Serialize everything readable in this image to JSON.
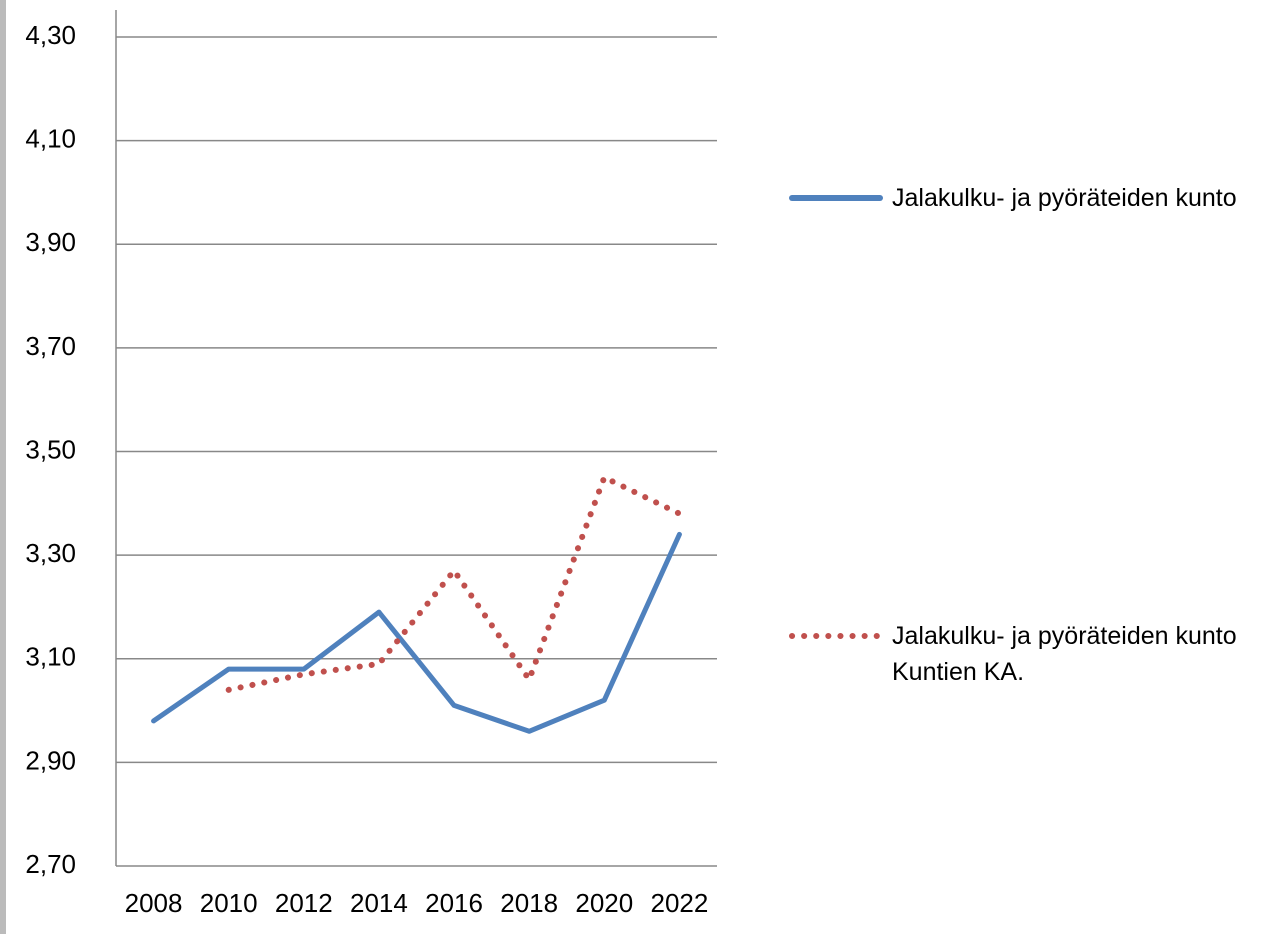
{
  "chart_data": {
    "type": "line",
    "categories": [
      "2008",
      "2010",
      "2012",
      "2014",
      "2016",
      "2018",
      "2020",
      "2022"
    ],
    "series": [
      {
        "name": "Jalakulku- ja pyöräteiden kunto",
        "color": "#4f81bd",
        "style": "solid",
        "values": [
          2.98,
          3.08,
          3.08,
          3.19,
          3.01,
          2.96,
          3.02,
          3.34
        ]
      },
      {
        "name": "Jalakulku- ja pyöräteiden kunto Kuntien KA.",
        "color": "#c0504d",
        "style": "dotted",
        "values": [
          null,
          3.04,
          3.07,
          3.09,
          3.27,
          3.06,
          3.45,
          3.38
        ]
      }
    ],
    "ylim": [
      2.7,
      4.3
    ],
    "yticks": [
      {
        "value": 2.7,
        "label": "2,70"
      },
      {
        "value": 2.9,
        "label": "2,90"
      },
      {
        "value": 3.1,
        "label": "3,10"
      },
      {
        "value": 3.3,
        "label": "3,30"
      },
      {
        "value": 3.5,
        "label": "3,50"
      },
      {
        "value": 3.7,
        "label": "3,70"
      },
      {
        "value": 3.9,
        "label": "3,90"
      },
      {
        "value": 4.1,
        "label": "4,10"
      },
      {
        "value": 4.3,
        "label": "4,30"
      }
    ],
    "grid": true,
    "legend": "right"
  }
}
